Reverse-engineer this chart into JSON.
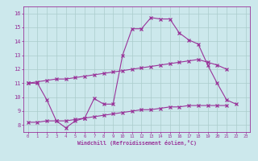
{
  "xlabel": "Windchill (Refroidissement éolien,°C)",
  "background_color": "#cce8ec",
  "line_color": "#993399",
  "grid_color": "#aacccc",
  "xlim": [
    -0.5,
    23.5
  ],
  "ylim": [
    7.5,
    16.5
  ],
  "xticks": [
    0,
    1,
    2,
    3,
    4,
    5,
    6,
    7,
    8,
    9,
    10,
    11,
    12,
    13,
    14,
    15,
    16,
    17,
    18,
    19,
    20,
    21,
    22,
    23
  ],
  "yticks": [
    8,
    9,
    10,
    11,
    12,
    13,
    14,
    15,
    16
  ],
  "line1_x": [
    0,
    1,
    2,
    3,
    4,
    5,
    6,
    7,
    8,
    9,
    10,
    11,
    12,
    13,
    14,
    15,
    16,
    17,
    18,
    19,
    20,
    21,
    22
  ],
  "line1_y": [
    11.0,
    11.0,
    9.8,
    8.3,
    7.8,
    8.3,
    8.5,
    9.9,
    9.5,
    9.5,
    13.0,
    14.9,
    14.9,
    15.7,
    15.6,
    15.6,
    14.6,
    14.1,
    13.8,
    12.3,
    11.0,
    9.8,
    9.5
  ],
  "line2_x": [
    0,
    1,
    2,
    3,
    4,
    5,
    6,
    7,
    8,
    9,
    10,
    11,
    12,
    13,
    14,
    15,
    16,
    17,
    18,
    19,
    20,
    21
  ],
  "line2_y": [
    11.0,
    11.1,
    11.2,
    11.3,
    11.3,
    11.4,
    11.5,
    11.6,
    11.7,
    11.8,
    11.9,
    12.0,
    12.1,
    12.2,
    12.3,
    12.4,
    12.5,
    12.6,
    12.7,
    12.5,
    12.3,
    12.0
  ],
  "line3_x": [
    0,
    1,
    2,
    3,
    4,
    5,
    6,
    7,
    8,
    9,
    10,
    11,
    12,
    13,
    14,
    15,
    16,
    17,
    18,
    19,
    20,
    21
  ],
  "line3_y": [
    8.2,
    8.2,
    8.3,
    8.3,
    8.3,
    8.4,
    8.5,
    8.6,
    8.7,
    8.8,
    8.9,
    9.0,
    9.1,
    9.1,
    9.2,
    9.3,
    9.3,
    9.4,
    9.4,
    9.4,
    9.4,
    9.4
  ]
}
